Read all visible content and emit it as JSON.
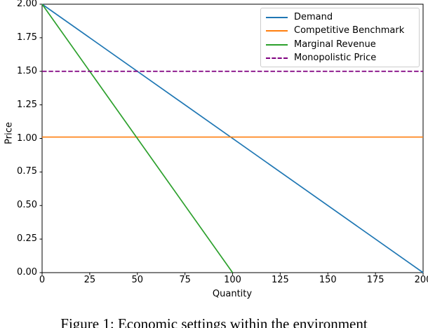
{
  "figure": {
    "caption": "Figure 1: Economic settings within the environment"
  },
  "chart_data": {
    "type": "line",
    "title": "",
    "xlabel": "Quantity",
    "ylabel": "Price",
    "xlim": [
      0,
      200
    ],
    "ylim": [
      0.0,
      2.0
    ],
    "x_tick_values": [
      0,
      25,
      50,
      75,
      100,
      125,
      150,
      175,
      200
    ],
    "x_tick_labels": [
      "0",
      "25",
      "50",
      "75",
      "100",
      "125",
      "150",
      "175",
      "200"
    ],
    "y_tick_values": [
      0.0,
      0.25,
      0.5,
      0.75,
      1.0,
      1.25,
      1.5,
      1.75,
      2.0
    ],
    "y_tick_labels": [
      "0.00",
      "0.25",
      "0.50",
      "0.75",
      "1.00",
      "1.25",
      "1.50",
      "1.75",
      "2.00"
    ],
    "grid": false,
    "legend": {
      "position": "upper right",
      "entries": [
        "Demand",
        "Competitive Benchmark",
        "Marginal Revenue",
        "Monopolistic Price"
      ]
    },
    "series": [
      {
        "name": "Demand",
        "color": "#1f77b4",
        "line_style": "solid",
        "points": [
          [
            0,
            2.0
          ],
          [
            200,
            0.0
          ]
        ]
      },
      {
        "name": "Competitive Benchmark",
        "color": "#ff7f0e",
        "line_style": "solid",
        "points": [
          [
            0,
            1.01
          ],
          [
            200,
            1.01
          ]
        ]
      },
      {
        "name": "Marginal Revenue",
        "color": "#2ca02c",
        "line_style": "solid",
        "points": [
          [
            0,
            2.0
          ],
          [
            100,
            0.0
          ]
        ]
      },
      {
        "name": "Monopolistic Price",
        "color": "#800080",
        "line_style": "dashed",
        "points": [
          [
            0,
            1.5
          ],
          [
            200,
            1.5
          ]
        ]
      }
    ],
    "spine_color": "#000000",
    "legend_border_color": "#cccccc"
  }
}
